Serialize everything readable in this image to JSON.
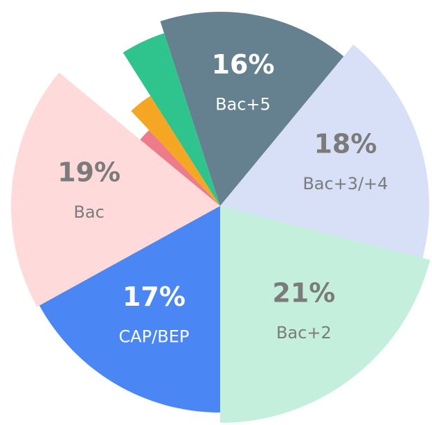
{
  "chart_data": {
    "type": "pie",
    "categories": [
      "Bac+5",
      "Bac+3/+4",
      "Bac+2",
      "CAP/BEP",
      "Bac",
      null,
      null,
      null
    ],
    "values": [
      16,
      18,
      21,
      17,
      19,
      2,
      3,
      4
    ],
    "value_labels": [
      "16%",
      "18%",
      "21%",
      "17%",
      "19%",
      null,
      null,
      null
    ],
    "colors": [
      "#65808f",
      "#d7e0f7",
      "#c4efdd",
      "#4b87f4",
      "#ffdada",
      "#ee7b8a",
      "#f5a623",
      "#2fc48d"
    ]
  }
}
